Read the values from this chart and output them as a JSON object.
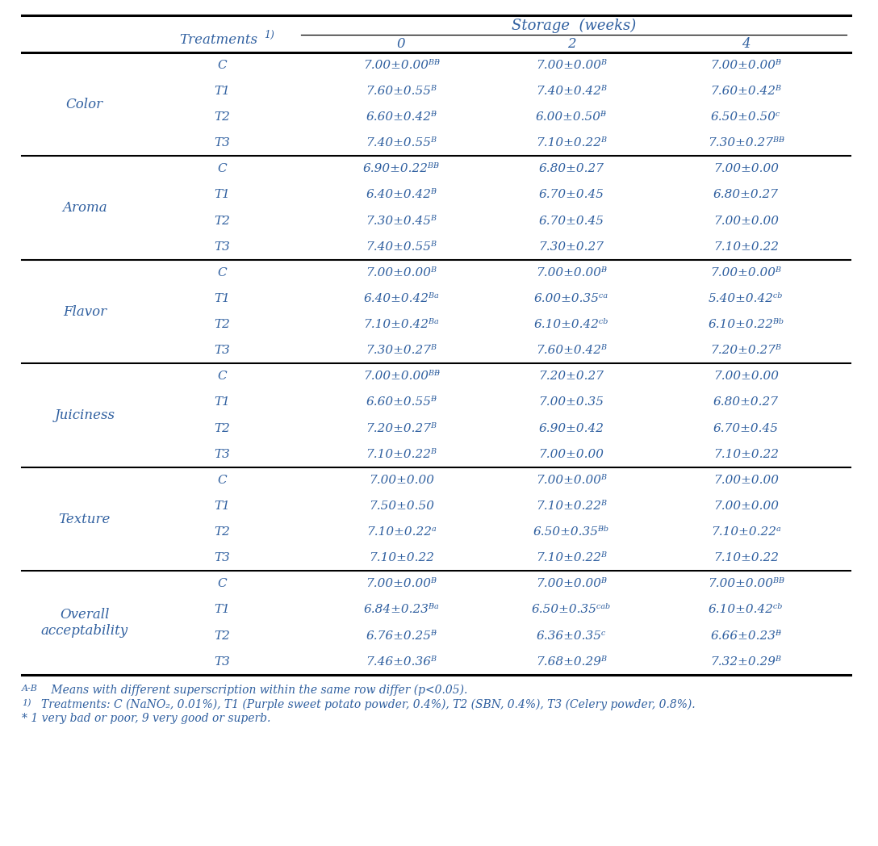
{
  "title_text": "Storage  (weeks)",
  "treatments_header": "Treatments",
  "treatments_super": "1)",
  "week_headers": [
    "0",
    "2",
    "4"
  ],
  "sections": [
    {
      "name": "Color",
      "name2": "",
      "rows": [
        [
          "C",
          "7.00±0.00ᴮᴯ",
          "7.00±0.00ᴮ",
          "7.00±0.00ᴯ"
        ],
        [
          "T1",
          "7.60±0.55ᴮ",
          "7.40±0.42ᴮ",
          "7.60±0.42ᴮ"
        ],
        [
          "T2",
          "6.60±0.42ᴯ",
          "6.00±0.50ᴯ",
          "6.50±0.50ᶜ"
        ],
        [
          "T3",
          "7.40±0.55ᴮ",
          "7.10±0.22ᴮ",
          "7.30±0.27ᴮᴯ"
        ]
      ]
    },
    {
      "name": "Aroma",
      "name2": "",
      "rows": [
        [
          "C",
          "6.90±0.22ᴮᴯ",
          "6.80±0.27",
          "7.00±0.00"
        ],
        [
          "T1",
          "6.40±0.42ᴯ",
          "6.70±0.45",
          "6.80±0.27"
        ],
        [
          "T2",
          "7.30±0.45ᴮ",
          "6.70±0.45",
          "7.00±0.00"
        ],
        [
          "T3",
          "7.40±0.55ᴮ",
          "7.30±0.27",
          "7.10±0.22"
        ]
      ]
    },
    {
      "name": "Flavor",
      "name2": "",
      "rows": [
        [
          "C",
          "7.00±0.00ᴮ",
          "7.00±0.00ᴯ",
          "7.00±0.00ᴮ"
        ],
        [
          "T1",
          "6.40±0.42ᴮᵃ",
          "6.00±0.35ᶜᵃ",
          "5.40±0.42ᶜᵇ"
        ],
        [
          "T2",
          "7.10±0.42ᴮᵃ",
          "6.10±0.42ᶜᵇ",
          "6.10±0.22ᴯᵇ"
        ],
        [
          "T3",
          "7.30±0.27ᴮ",
          "7.60±0.42ᴮ",
          "7.20±0.27ᴮ"
        ]
      ]
    },
    {
      "name": "Juiciness",
      "name2": "",
      "rows": [
        [
          "C",
          "7.00±0.00ᴮᴯ",
          "7.20±0.27",
          "7.00±0.00"
        ],
        [
          "T1",
          "6.60±0.55ᴯ",
          "7.00±0.35",
          "6.80±0.27"
        ],
        [
          "T2",
          "7.20±0.27ᴮ",
          "6.90±0.42",
          "6.70±0.45"
        ],
        [
          "T3",
          "7.10±0.22ᴮ",
          "7.00±0.00",
          "7.10±0.22"
        ]
      ]
    },
    {
      "name": "Texture",
      "name2": "",
      "rows": [
        [
          "C",
          "7.00±0.00",
          "7.00±0.00ᴮ",
          "7.00±0.00"
        ],
        [
          "T1",
          "7.50±0.50",
          "7.10±0.22ᴮ",
          "7.00±0.00"
        ],
        [
          "T2",
          "7.10±0.22ᵃ",
          "6.50±0.35ᴯᵇ",
          "7.10±0.22ᵃ"
        ],
        [
          "T3",
          "7.10±0.22",
          "7.10±0.22ᴮ",
          "7.10±0.22"
        ]
      ]
    },
    {
      "name": "Overall",
      "name2": "acceptability",
      "rows": [
        [
          "C",
          "7.00±0.00ᴯ",
          "7.00±0.00ᴯ",
          "7.00±0.00ᴮᴯ"
        ],
        [
          "T1",
          "6.84±0.23ᴯᵃ",
          "6.50±0.35ᶜᵃᵇ",
          "6.10±0.42ᶜᵇ"
        ],
        [
          "T2",
          "6.76±0.25ᴯ",
          "6.36±0.35ᶜ",
          "6.66±0.23ᴯ"
        ],
        [
          "T3",
          "7.46±0.36ᴮ",
          "7.68±0.29ᴮ",
          "7.32±0.29ᴮ"
        ]
      ]
    }
  ],
  "footnote1": "A-B Means with different superscription within the same row differ (p<0.05).",
  "footnote2_pre": "1)",
  "footnote2_main": "Treatments: C (NaNO₂, 0.01%), T1 (Purple sweet potato powder, 0.4%), T2 (SBN, 0.4%), T3 (Celery powder, 0.8%).",
  "footnote3": "* 1 very bad or poor, 9 very good or superb.",
  "text_color": "#3060a0",
  "line_color": "#000000",
  "bg_color": "#ffffff"
}
